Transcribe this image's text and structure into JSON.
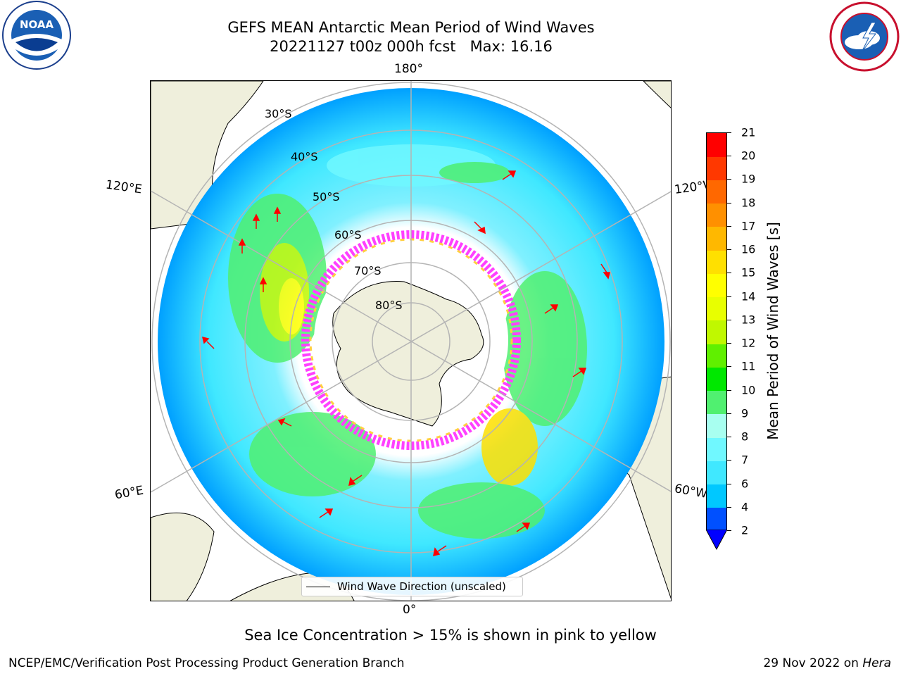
{
  "header": {
    "title_line1": "GEFS MEAN Antarctic Mean Period of Wind Waves",
    "title_line2": "20221127 t00z 000h fcst   Max: 16.16"
  },
  "logos": {
    "noaa": {
      "icon": "noaa-logo",
      "text": "NOAA",
      "ring_text": "NATIONAL OCEANIC AND ATMOSPHERIC ADMINISTRATION · U.S. DEPARTMENT OF COMMERCE"
    },
    "nws": {
      "icon": "nws-logo",
      "ring_text": "NATIONAL WEATHER SERVICE"
    }
  },
  "map": {
    "projection": "south-polar-stereographic",
    "longitude_labels": {
      "top": "180°",
      "bottom": "0°",
      "upper_left": "120°E",
      "upper_right": "120°W",
      "lower_left": "60°E",
      "lower_right": "60°W"
    },
    "latitude_labels": [
      "30°S",
      "40°S",
      "50°S",
      "60°S",
      "70°S",
      "80°S"
    ],
    "colors": {
      "land": "#efefdc",
      "ocean_blank": "#ffffff",
      "coastline": "#000000",
      "gridline": "#b4b4b4",
      "arrow": "#ff0000",
      "sea_ice_low": "#ff40ff",
      "sea_ice_high": "#ffd040"
    }
  },
  "legend": {
    "label": "Wind Wave Direction (unscaled)"
  },
  "colorbar": {
    "label": "Mean Period of Wind Waves [s]",
    "ticks": [
      "2",
      "4",
      "6",
      "7",
      "8",
      "9",
      "10",
      "11",
      "12",
      "13",
      "14",
      "15",
      "16",
      "17",
      "18",
      "19",
      "20",
      "21"
    ],
    "colors": [
      "#0050ff",
      "#00c8ff",
      "#40e8ff",
      "#70f8ff",
      "#a8fff0",
      "#50f070",
      "#00e800",
      "#60f000",
      "#c0f800",
      "#e8ff00",
      "#ffff00",
      "#ffe000",
      "#ffb800",
      "#ff9000",
      "#ff6800",
      "#ff3800",
      "#ff0000"
    ],
    "extend_color": "#0000ff"
  },
  "caption": "Sea Ice Concentration > 15% is shown in pink to yellow",
  "footer": {
    "left": "NCEP/EMC/Verification Post Processing Product Generation Branch",
    "right_prefix": "29 Nov 2022 on ",
    "right_system": "Hera"
  }
}
